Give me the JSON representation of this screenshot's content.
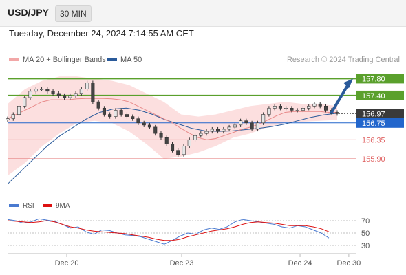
{
  "header": {
    "symbol": "USD/JPY",
    "timeframe": "30 MIN",
    "timestamp": "Tuesday, December 24, 2024 7:14:55 AM CET"
  },
  "legend": {
    "ma20_label": "MA 20 + Bollinger Bands",
    "ma50_label": "MA 50",
    "credit": "Research © 2024 Trading Central"
  },
  "rsi_legend": {
    "rsi_label": "RSI",
    "ma_label": "9MA"
  },
  "colors": {
    "resistance": "#5aa02c",
    "pivot": "#2266cc",
    "support": "#e06666",
    "current": "#3a3a3a",
    "ma50": "#2a5a9a",
    "ma20": "#e88a8a",
    "bollinger": "#fbd9d9",
    "candle_up": "#e6e6e6",
    "candle_down": "#444444",
    "arrow": "#2a5a9a",
    "rsi": "#4a7ad0",
    "rsi_ma": "#dd1111"
  },
  "chart_data": {
    "type": "line",
    "price_ylim": [
      155.1,
      158.1
    ],
    "levels": [
      {
        "label": "157.80",
        "value": 157.8,
        "role": "resistance"
      },
      {
        "label": "157.40",
        "value": 157.4,
        "role": "resistance"
      },
      {
        "label": "156.97",
        "value": 156.97,
        "role": "current"
      },
      {
        "label": "156.75",
        "value": 156.75,
        "role": "pivot"
      },
      {
        "label": "156.35",
        "value": 156.35,
        "role": "support"
      },
      {
        "label": "155.90",
        "value": 155.9,
        "role": "support"
      }
    ],
    "x_ticks": [
      {
        "label": "Dec 20",
        "t": 0.17
      },
      {
        "label": "Dec 23",
        "t": 0.5
      },
      {
        "label": "Dec 24",
        "t": 0.84
      },
      {
        "label": "Dec 30",
        "t": 0.98
      }
    ],
    "price_close": [
      156.85,
      156.95,
      157.15,
      157.35,
      157.5,
      157.55,
      157.55,
      157.5,
      157.45,
      157.4,
      157.35,
      157.4,
      157.45,
      157.55,
      157.7,
      157.25,
      157.1,
      156.95,
      156.9,
      157.05,
      156.95,
      156.9,
      156.85,
      156.75,
      156.7,
      156.65,
      156.5,
      156.4,
      156.25,
      156.1,
      156.0,
      156.2,
      156.35,
      156.45,
      156.5,
      156.55,
      156.6,
      156.55,
      156.6,
      156.65,
      156.7,
      156.8,
      156.75,
      156.6,
      156.75,
      156.95,
      157.1,
      157.15,
      157.1,
      157.1,
      157.05,
      157.05,
      157.1,
      157.15,
      157.2,
      157.15,
      157.05,
      157.0,
      156.97
    ],
    "ma20": [
      156.85,
      156.95,
      157.05,
      157.15,
      157.25,
      157.3,
      157.3,
      157.3,
      157.32,
      157.33,
      157.33,
      157.33,
      157.32,
      157.3,
      157.25,
      157.15,
      157.05,
      156.95,
      156.85,
      156.75,
      156.62,
      156.5,
      156.4,
      156.35,
      156.38,
      156.45,
      156.52,
      156.6,
      156.65,
      156.72,
      156.82,
      156.92,
      157.0,
      157.02,
      157.02,
      157.02,
      157.02,
      157.0,
      157.0
    ],
    "ma50": [
      155.3,
      155.6,
      155.9,
      156.2,
      156.45,
      156.65,
      156.85,
      157.0,
      157.08,
      157.1,
      157.05,
      156.95,
      156.82,
      156.72,
      156.62,
      156.56,
      156.55,
      156.56,
      156.59,
      156.62,
      156.66,
      156.72,
      156.8,
      156.88,
      156.94,
      156.98
    ],
    "bollinger_upper": [
      157.2,
      157.55,
      157.75,
      157.85,
      157.85,
      157.8,
      157.75,
      157.65,
      157.45,
      157.25,
      156.95,
      156.9,
      156.95,
      157.05,
      157.15,
      157.2,
      157.25,
      157.2,
      157.2,
      157.15
    ],
    "bollinger_lower": [
      155.5,
      155.8,
      156.2,
      156.5,
      156.75,
      156.8,
      156.75,
      156.55,
      156.25,
      155.9,
      155.95,
      156.05,
      156.2,
      156.4,
      156.5,
      156.65,
      156.75,
      156.78,
      156.8,
      156.82
    ],
    "forecast_target": 157.8,
    "rsi_ticks": [
      30,
      50,
      70
    ],
    "rsi_ylim": [
      20,
      80
    ],
    "rsi": [
      72,
      70,
      66,
      68,
      73,
      71,
      69,
      64,
      58,
      60,
      52,
      48,
      55,
      54,
      50,
      47,
      46,
      44,
      40,
      36,
      32,
      38,
      45,
      50,
      48,
      55,
      58,
      56,
      60,
      68,
      72,
      70,
      68,
      66,
      64,
      60,
      58,
      62,
      60,
      55,
      50,
      42
    ],
    "rsi_ma": [
      70,
      69,
      68,
      67,
      68,
      70,
      68,
      64,
      60,
      58,
      55,
      53,
      52,
      51,
      50,
      49,
      47,
      45,
      43,
      40,
      38,
      38,
      40,
      44,
      47,
      50,
      53,
      55,
      57,
      60,
      64,
      67,
      68,
      67,
      66,
      64,
      62,
      62,
      62,
      60,
      57,
      52
    ]
  }
}
